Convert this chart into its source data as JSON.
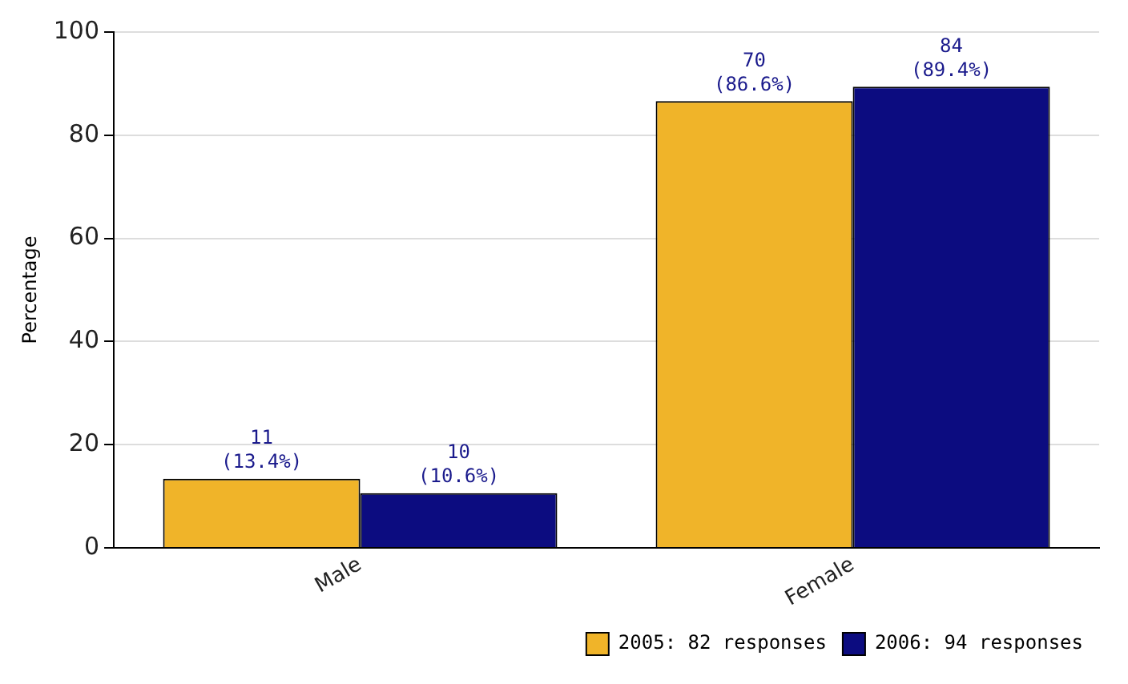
{
  "chart_data": {
    "type": "bar",
    "ylabel": "Percentage",
    "categories": [
      "Male",
      "Female"
    ],
    "series": [
      {
        "name": "2005: 82 responses",
        "color": "#f0b429",
        "values": [
          13.4,
          86.6
        ],
        "value_labels": [
          "11 (13.4%)",
          "70 (86.6%)"
        ]
      },
      {
        "name": "2006: 94 responses",
        "color": "#0c0c80",
        "values": [
          10.6,
          89.4
        ],
        "value_labels": [
          "10 (10.6%)",
          "84 (89.4%)"
        ]
      }
    ],
    "ylim": [
      0,
      100
    ],
    "yticks": [
      0,
      20,
      40,
      60,
      80,
      100
    ],
    "grid": "y",
    "legend": "bottom right"
  }
}
